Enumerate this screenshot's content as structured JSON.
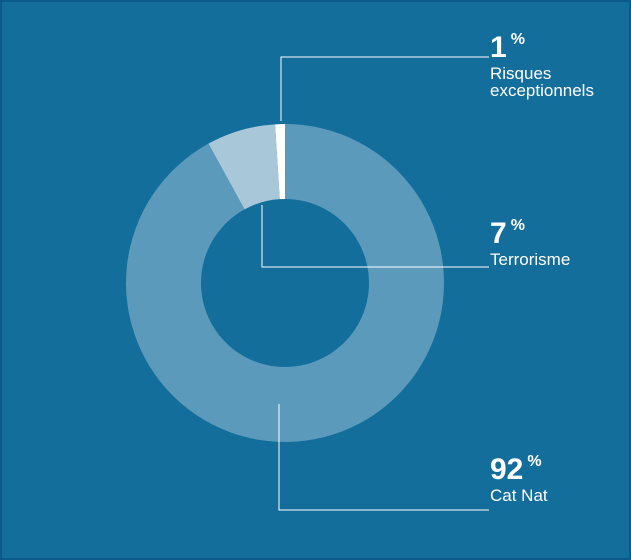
{
  "colors": {
    "background": "#146e9b",
    "border": "#0c5a8a",
    "line": "#ffffff"
  },
  "chart_data": {
    "type": "pie",
    "donut": true,
    "categories": [
      "Risques exceptionnels",
      "Terrorisme",
      "Cat Nat"
    ],
    "values": [
      1,
      7,
      92
    ],
    "colors": [
      "#ffffff",
      "#a8c8da",
      "#5b9abb"
    ],
    "title": ""
  },
  "labels": [
    {
      "value": "1",
      "unit": "%",
      "name_lines": [
        "Risques",
        "exceptionnels"
      ]
    },
    {
      "value": "7",
      "unit": "%",
      "name_lines": [
        "Terrorisme"
      ]
    },
    {
      "value": "92",
      "unit": "%",
      "name_lines": [
        "Cat Nat"
      ]
    }
  ]
}
